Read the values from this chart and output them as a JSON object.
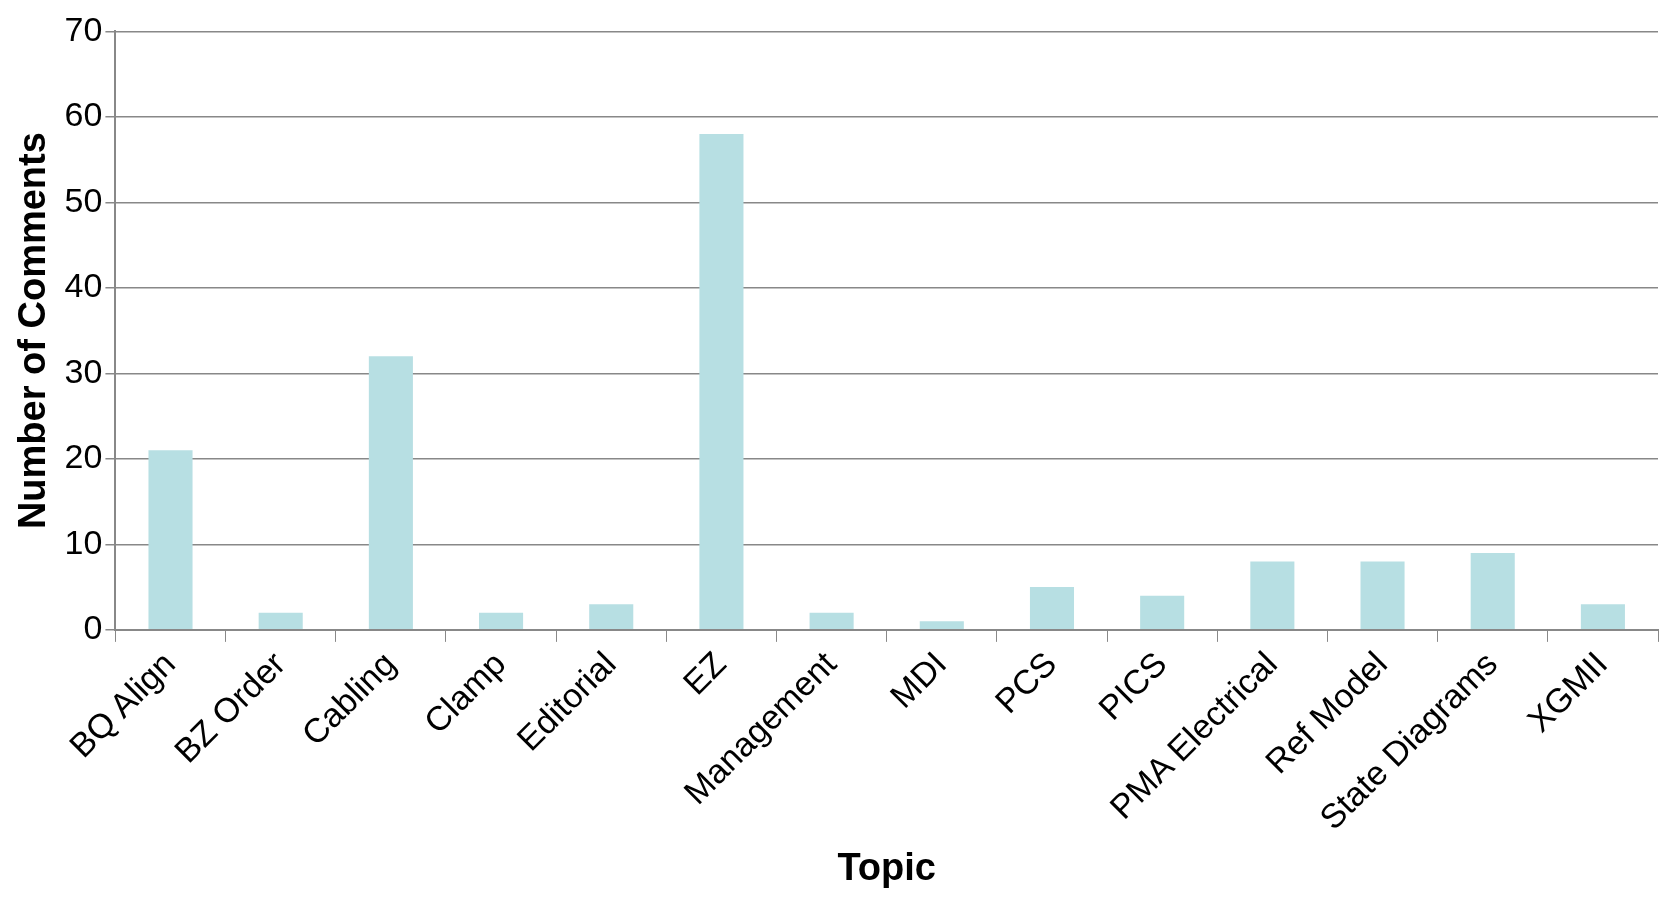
{
  "chart_data": {
    "type": "bar",
    "xlabel": "Topic",
    "ylabel": "Number of Comments",
    "categories": [
      "BQ Align",
      "BZ Order",
      "Cabling",
      "Clamp",
      "Editorial",
      "EZ",
      "Management",
      "MDI",
      "PCS",
      "PICS",
      "PMA Electrical",
      "Ref Model",
      "State Diagrams",
      "XGMII"
    ],
    "values": [
      21,
      2,
      32,
      2,
      3,
      58,
      2,
      1,
      5,
      4,
      8,
      8,
      9,
      3
    ],
    "color": "#b7dfe3",
    "ylim": [
      0,
      70
    ],
    "yticks": [
      0,
      10,
      20,
      30,
      40,
      50,
      60,
      70
    ],
    "grid": "y",
    "legend": false
  }
}
